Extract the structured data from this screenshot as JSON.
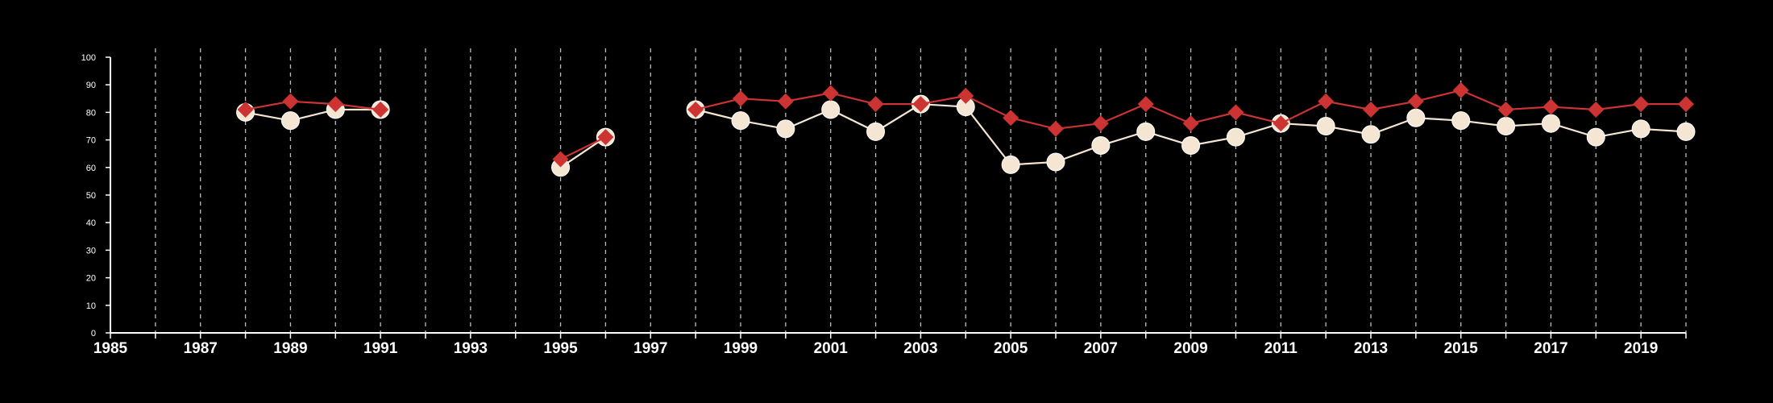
{
  "chart_data": {
    "type": "line",
    "title": "",
    "xlabel": "",
    "ylabel": "",
    "xlim": [
      1985,
      2020
    ],
    "ylim": [
      0,
      100
    ],
    "y_ticks": [
      0,
      10,
      20,
      30,
      40,
      50,
      60,
      70,
      80,
      90,
      100
    ],
    "x_tick_labels": [
      "1985",
      "1987",
      "1989",
      "1991",
      "1993",
      "1995",
      "1997",
      "1999",
      "2001",
      "2003",
      "2005",
      "2007",
      "2009",
      "2011",
      "2013",
      "2015",
      "2017",
      "2019"
    ],
    "vertical_gridlines": "dashed, every year",
    "legend": "none",
    "series": [
      {
        "color": "#cc3333",
        "marker": "diamond",
        "segments": [
          {
            "x": [
              1988,
              1989,
              1990,
              1991
            ],
            "y": [
              81,
              84,
              83,
              81
            ]
          },
          {
            "x": [
              1995,
              1996
            ],
            "y": [
              63,
              71
            ]
          },
          {
            "x": [
              1998,
              1999,
              2000,
              2001,
              2002,
              2003,
              2004,
              2005,
              2006,
              2007,
              2008,
              2009,
              2010,
              2011,
              2012,
              2013,
              2014,
              2015,
              2016,
              2017,
              2018,
              2019,
              2020
            ],
            "y": [
              81,
              85,
              84,
              87,
              83,
              83,
              86,
              78,
              74,
              76,
              83,
              76,
              80,
              76,
              84,
              81,
              84,
              88,
              81,
              82,
              81,
              83,
              83
            ]
          }
        ]
      },
      {
        "color": "#f5e6d3",
        "marker": "circle",
        "segments": [
          {
            "x": [
              1988,
              1989,
              1990,
              1991
            ],
            "y": [
              80,
              77,
              81,
              81
            ]
          },
          {
            "x": [
              1995,
              1996
            ],
            "y": [
              60,
              71
            ]
          },
          {
            "x": [
              1998,
              1999,
              2000,
              2001,
              2002,
              2003,
              2004,
              2005,
              2006,
              2007,
              2008,
              2009,
              2010,
              2011,
              2012,
              2013,
              2014,
              2015,
              2016,
              2017,
              2018,
              2019,
              2020
            ],
            "y": [
              81,
              77,
              74,
              81,
              73,
              83,
              82,
              61,
              62,
              68,
              73,
              68,
              71,
              76,
              75,
              72,
              78,
              77,
              75,
              76,
              71,
              74,
              73
            ]
          }
        ]
      }
    ]
  }
}
